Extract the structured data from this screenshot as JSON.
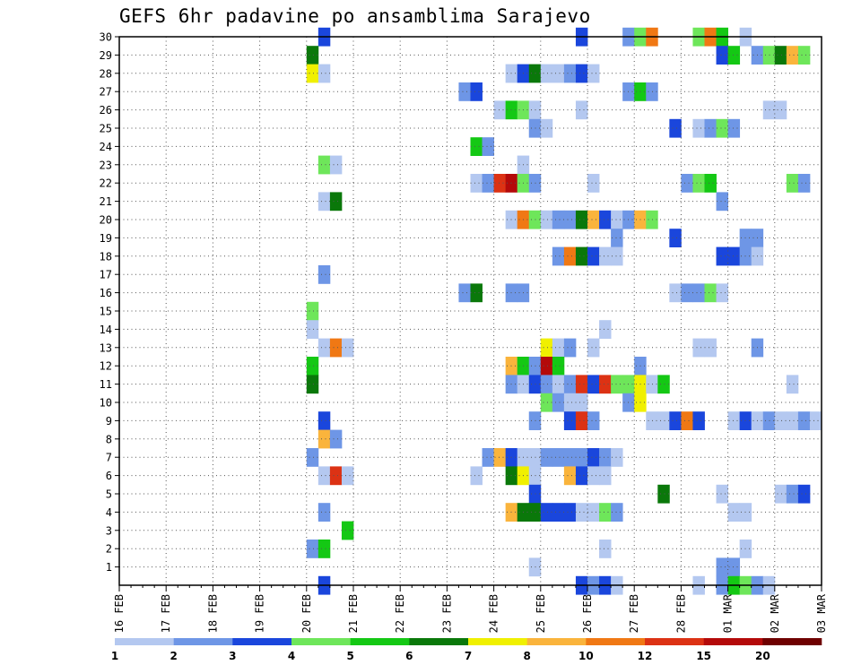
{
  "title": "GEFS 6hr padavine po ansamblima Sarajevo",
  "chart_data": {
    "type": "heatmap",
    "title": "GEFS 6hr padavine po ansamblima Sarajevo",
    "xlabel": "",
    "ylabel": "",
    "x_tick_labels": [
      "16 FEB",
      "17 FEB",
      "18 FEB",
      "19 FEB",
      "20 FEB",
      "21 FEB",
      "22 FEB",
      "23 FEB",
      "24 FEB",
      "25 FEB",
      "26 FEB",
      "27 FEB",
      "28 FEB",
      "01 MAR",
      "02 MAR",
      "03 MAR"
    ],
    "y_tick_labels": [
      "1",
      "2",
      "3",
      "4",
      "5",
      "6",
      "7",
      "8",
      "9",
      "10",
      "11",
      "12",
      "13",
      "14",
      "15",
      "16",
      "17",
      "18",
      "19",
      "20",
      "21",
      "22",
      "23",
      "24",
      "25",
      "26",
      "27",
      "28",
      "29",
      "30"
    ],
    "grid": true,
    "x_step": "6hr",
    "legend": {
      "placement": "bottom",
      "thresholds": [
        "1",
        "2",
        "3",
        "4",
        "5",
        "6",
        "7",
        "8",
        "10",
        "12",
        "15",
        "20"
      ],
      "colors": [
        "#b4c8f0",
        "#6e96e6",
        "#1a46dc",
        "#6ee65a",
        "#14c814",
        "#0a780a",
        "#f0f000",
        "#fab43c",
        "#f07814",
        "#dc3214",
        "#b40a0a",
        "#6e0000"
      ]
    },
    "cells": [
      [
        30,
        17,
        3
      ],
      [
        30,
        39,
        3
      ],
      [
        30,
        43,
        2
      ],
      [
        30,
        44,
        4
      ],
      [
        30,
        45,
        9
      ],
      [
        30,
        49,
        4
      ],
      [
        30,
        50,
        9
      ],
      [
        30,
        51,
        5
      ],
      [
        30,
        53,
        1
      ],
      [
        29,
        16,
        6
      ],
      [
        29,
        51,
        3
      ],
      [
        29,
        52,
        5
      ],
      [
        29,
        54,
        2
      ],
      [
        29,
        55,
        4
      ],
      [
        29,
        56,
        6
      ],
      [
        29,
        57,
        8
      ],
      [
        29,
        58,
        4
      ],
      [
        28,
        16,
        7
      ],
      [
        28,
        17,
        1
      ],
      [
        28,
        33,
        1
      ],
      [
        28,
        34,
        3
      ],
      [
        28,
        35,
        6
      ],
      [
        28,
        36,
        1
      ],
      [
        28,
        37,
        1
      ],
      [
        28,
        38,
        2
      ],
      [
        28,
        39,
        3
      ],
      [
        28,
        40,
        1
      ],
      [
        27,
        29,
        2
      ],
      [
        27,
        30,
        3
      ],
      [
        27,
        43,
        2
      ],
      [
        27,
        44,
        5
      ],
      [
        27,
        45,
        2
      ],
      [
        26,
        32,
        1
      ],
      [
        26,
        33,
        5
      ],
      [
        26,
        34,
        4
      ],
      [
        26,
        35,
        1
      ],
      [
        26,
        39,
        1
      ],
      [
        26,
        55,
        1
      ],
      [
        26,
        56,
        1
      ],
      [
        25,
        35,
        2
      ],
      [
        25,
        36,
        1
      ],
      [
        25,
        47,
        3
      ],
      [
        25,
        49,
        1
      ],
      [
        25,
        50,
        2
      ],
      [
        25,
        51,
        4
      ],
      [
        25,
        52,
        2
      ],
      [
        24,
        30,
        5
      ],
      [
        24,
        31,
        2
      ],
      [
        23,
        17,
        4
      ],
      [
        23,
        18,
        1
      ],
      [
        23,
        34,
        1
      ],
      [
        22,
        30,
        1
      ],
      [
        22,
        31,
        2
      ],
      [
        22,
        32,
        10
      ],
      [
        22,
        33,
        11
      ],
      [
        22,
        34,
        4
      ],
      [
        22,
        35,
        2
      ],
      [
        22,
        40,
        1
      ],
      [
        22,
        48,
        2
      ],
      [
        22,
        49,
        4
      ],
      [
        22,
        50,
        5
      ],
      [
        22,
        57,
        4
      ],
      [
        22,
        58,
        2
      ],
      [
        21,
        17,
        1
      ],
      [
        21,
        18,
        6
      ],
      [
        21,
        51,
        2
      ],
      [
        20,
        33,
        1
      ],
      [
        20,
        34,
        9
      ],
      [
        20,
        35,
        4
      ],
      [
        20,
        36,
        1
      ],
      [
        20,
        37,
        2
      ],
      [
        20,
        38,
        2
      ],
      [
        20,
        39,
        6
      ],
      [
        20,
        40,
        8
      ],
      [
        20,
        41,
        3
      ],
      [
        20,
        42,
        1
      ],
      [
        20,
        43,
        2
      ],
      [
        20,
        44,
        8
      ],
      [
        20,
        45,
        4
      ],
      [
        19,
        42,
        2
      ],
      [
        19,
        47,
        3
      ],
      [
        19,
        53,
        2
      ],
      [
        19,
        54,
        2
      ],
      [
        18,
        37,
        2
      ],
      [
        18,
        38,
        9
      ],
      [
        18,
        39,
        6
      ],
      [
        18,
        40,
        3
      ],
      [
        18,
        41,
        1
      ],
      [
        18,
        42,
        1
      ],
      [
        18,
        51,
        3
      ],
      [
        18,
        52,
        3
      ],
      [
        18,
        53,
        2
      ],
      [
        18,
        54,
        1
      ],
      [
        17,
        17,
        2
      ],
      [
        16,
        29,
        2
      ],
      [
        16,
        30,
        6
      ],
      [
        16,
        33,
        2
      ],
      [
        16,
        34,
        2
      ],
      [
        16,
        47,
        1
      ],
      [
        16,
        48,
        2
      ],
      [
        16,
        49,
        2
      ],
      [
        16,
        50,
        4
      ],
      [
        16,
        51,
        1
      ],
      [
        15,
        16,
        4
      ],
      [
        14,
        16,
        1
      ],
      [
        14,
        41,
        1
      ],
      [
        13,
        17,
        1
      ],
      [
        13,
        18,
        9
      ],
      [
        13,
        19,
        1
      ],
      [
        13,
        36,
        7
      ],
      [
        13,
        37,
        1
      ],
      [
        13,
        38,
        2
      ],
      [
        13,
        40,
        1
      ],
      [
        13,
        49,
        1
      ],
      [
        13,
        50,
        1
      ],
      [
        13,
        54,
        2
      ],
      [
        12,
        16,
        5
      ],
      [
        12,
        33,
        8
      ],
      [
        12,
        34,
        5
      ],
      [
        12,
        35,
        2
      ],
      [
        12,
        36,
        11
      ],
      [
        12,
        37,
        5
      ],
      [
        12,
        44,
        2
      ],
      [
        11,
        16,
        6
      ],
      [
        11,
        33,
        2
      ],
      [
        11,
        34,
        1
      ],
      [
        11,
        35,
        3
      ],
      [
        11,
        36,
        2
      ],
      [
        11,
        37,
        1
      ],
      [
        11,
        38,
        2
      ],
      [
        11,
        39,
        10
      ],
      [
        11,
        40,
        3
      ],
      [
        11,
        41,
        10
      ],
      [
        11,
        42,
        4
      ],
      [
        11,
        43,
        4
      ],
      [
        11,
        44,
        7
      ],
      [
        11,
        45,
        1
      ],
      [
        11,
        46,
        5
      ],
      [
        11,
        57,
        1
      ],
      [
        10,
        36,
        4
      ],
      [
        10,
        37,
        2
      ],
      [
        10,
        38,
        1
      ],
      [
        10,
        39,
        1
      ],
      [
        10,
        43,
        2
      ],
      [
        10,
        44,
        7
      ],
      [
        9,
        17,
        3
      ],
      [
        9,
        35,
        2
      ],
      [
        9,
        38,
        3
      ],
      [
        9,
        39,
        10
      ],
      [
        9,
        40,
        2
      ],
      [
        9,
        45,
        1
      ],
      [
        9,
        46,
        1
      ],
      [
        9,
        47,
        3
      ],
      [
        9,
        48,
        9
      ],
      [
        9,
        49,
        3
      ],
      [
        9,
        52,
        1
      ],
      [
        9,
        53,
        3
      ],
      [
        9,
        54,
        1
      ],
      [
        9,
        55,
        2
      ],
      [
        9,
        56,
        1
      ],
      [
        9,
        57,
        1
      ],
      [
        9,
        58,
        2
      ],
      [
        9,
        59,
        1
      ],
      [
        8,
        17,
        8
      ],
      [
        8,
        18,
        2
      ],
      [
        7,
        16,
        2
      ],
      [
        7,
        31,
        2
      ],
      [
        7,
        32,
        8
      ],
      [
        7,
        33,
        3
      ],
      [
        7,
        34,
        1
      ],
      [
        7,
        35,
        1
      ],
      [
        7,
        36,
        2
      ],
      [
        7,
        37,
        2
      ],
      [
        7,
        38,
        2
      ],
      [
        7,
        39,
        2
      ],
      [
        7,
        40,
        3
      ],
      [
        7,
        41,
        2
      ],
      [
        7,
        42,
        1
      ],
      [
        6,
        17,
        1
      ],
      [
        6,
        18,
        10
      ],
      [
        6,
        19,
        1
      ],
      [
        6,
        30,
        1
      ],
      [
        6,
        33,
        6
      ],
      [
        6,
        34,
        7
      ],
      [
        6,
        35,
        1
      ],
      [
        6,
        38,
        8
      ],
      [
        6,
        39,
        3
      ],
      [
        6,
        40,
        1
      ],
      [
        6,
        41,
        1
      ],
      [
        5,
        35,
        3
      ],
      [
        5,
        46,
        6
      ],
      [
        5,
        51,
        1
      ],
      [
        5,
        56,
        1
      ],
      [
        5,
        57,
        2
      ],
      [
        5,
        58,
        3
      ],
      [
        4,
        17,
        2
      ],
      [
        4,
        33,
        8
      ],
      [
        4,
        34,
        6
      ],
      [
        4,
        35,
        6
      ],
      [
        4,
        36,
        3
      ],
      [
        4,
        37,
        3
      ],
      [
        4,
        38,
        3
      ],
      [
        4,
        39,
        1
      ],
      [
        4,
        40,
        1
      ],
      [
        4,
        41,
        4
      ],
      [
        4,
        42,
        2
      ],
      [
        4,
        52,
        1
      ],
      [
        4,
        53,
        1
      ],
      [
        3,
        19,
        5
      ],
      [
        2,
        16,
        2
      ],
      [
        2,
        17,
        5
      ],
      [
        2,
        41,
        1
      ],
      [
        2,
        53,
        1
      ],
      [
        1,
        35,
        1
      ],
      [
        1,
        51,
        2
      ],
      [
        1,
        52,
        2
      ],
      [
        0,
        17,
        3
      ],
      [
        0,
        39,
        3
      ],
      [
        0,
        40,
        2
      ],
      [
        0,
        41,
        3
      ],
      [
        0,
        42,
        1
      ],
      [
        0,
        49,
        1
      ],
      [
        0,
        51,
        2
      ],
      [
        0,
        52,
        5
      ],
      [
        0,
        53,
        4
      ],
      [
        0,
        54,
        2
      ],
      [
        0,
        55,
        1
      ]
    ]
  }
}
